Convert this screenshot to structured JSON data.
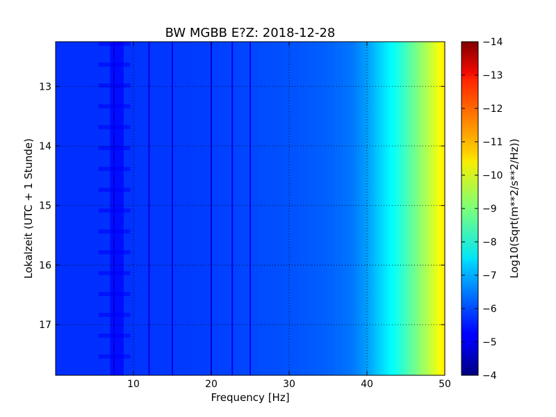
{
  "chart_data": {
    "type": "heatmap",
    "title": "BW MGBB E?Z: 2018-12-28",
    "xlabel": "Frequency [Hz]",
    "ylabel": "Lokalzeit (UTC + 1 Stunde)",
    "colorbar_label": "Log10(Sqrt(m**2/s**2/Hz))",
    "xlim": [
      0,
      50
    ],
    "ylim": [
      12.25,
      17.85
    ],
    "y_inverted": true,
    "x_ticks": [
      10,
      20,
      30,
      40,
      50
    ],
    "y_ticks": [
      13,
      14,
      15,
      16,
      17
    ],
    "colorbar_range": [
      -14,
      -4
    ],
    "colorbar_ticks": [
      -4,
      -5,
      -6,
      -7,
      -8,
      -9,
      -10,
      -11,
      -12,
      -13,
      -14
    ],
    "colormap": "jet",
    "grid": true,
    "approx_level_profile": {
      "frequency_hz": [
        0,
        5,
        10,
        15,
        20,
        25,
        30,
        35,
        38,
        40,
        42,
        44,
        46,
        48,
        50
      ],
      "log10_amplitude": [
        -5.7,
        -5.7,
        -5.75,
        -5.8,
        -5.85,
        -5.95,
        -6.05,
        -6.2,
        -6.4,
        -6.8,
        -7.4,
        -8.0,
        -8.8,
        -9.6,
        -10.5
      ]
    },
    "spectral_lines_hz": [
      7.5,
      12.0,
      15.0,
      20.0,
      22.7,
      25.0
    ],
    "dominant_band_hz": [
      6.8,
      8.6
    ]
  }
}
